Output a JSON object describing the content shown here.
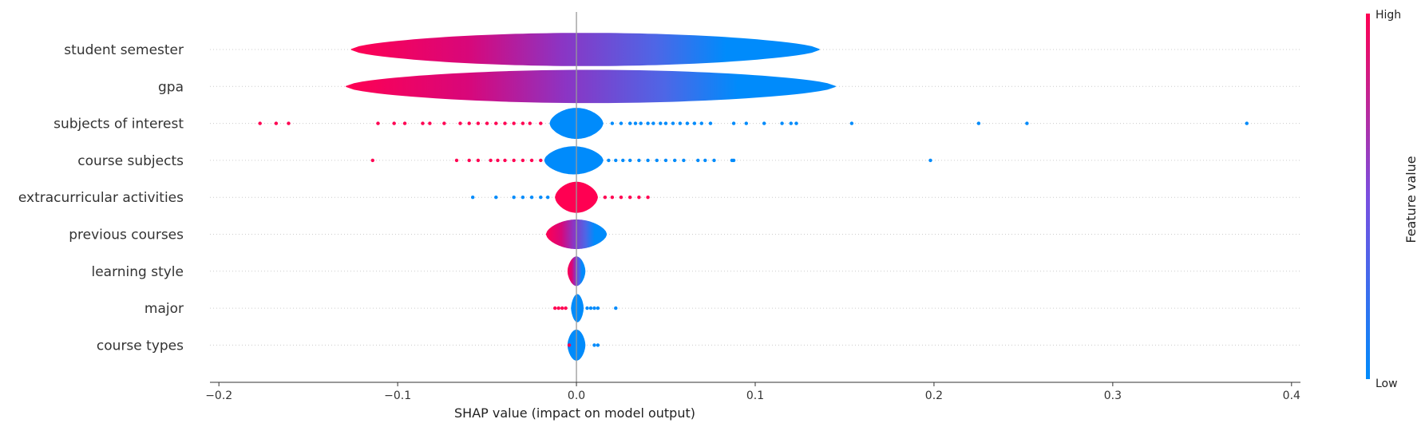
{
  "chart_data": {
    "type": "scatter",
    "subtype": "shap-violin-summary",
    "title": "",
    "xlabel": "SHAP value (impact on model output)",
    "xlim": [
      -0.205,
      0.405
    ],
    "xticks": [
      -0.2,
      -0.1,
      0.0,
      0.1,
      0.2,
      0.3,
      0.4
    ],
    "xtick_labels": [
      "−0.2",
      "−0.1",
      "0.0",
      "0.1",
      "0.2",
      "0.3",
      "0.4"
    ],
    "grid": "dotted horizontal guides per feature",
    "features": [
      {
        "name": "student semester",
        "violin": {
          "min": -0.126,
          "max": 0.136,
          "max_halfwidth": 0.45
        },
        "color_low_to_high_x": "high-left-low-right",
        "points_low": [],
        "points_high": []
      },
      {
        "name": "gpa",
        "violin": {
          "min": -0.129,
          "max": 0.145,
          "max_halfwidth": 0.45
        },
        "color_low_to_high_x": "high-left-low-right",
        "points_low": [],
        "points_high": []
      },
      {
        "name": "subjects of interest",
        "violin": {
          "min": -0.015,
          "max": 0.015,
          "max_halfwidth": 0.42
        },
        "points_low": [
          0.02,
          0.025,
          0.03,
          0.033,
          0.036,
          0.04,
          0.043,
          0.047,
          0.05,
          0.054,
          0.058,
          0.062,
          0.066,
          0.07,
          0.075,
          0.088,
          0.095,
          0.105,
          0.115,
          0.12,
          0.123,
          0.154,
          0.225,
          0.252,
          0.375
        ],
        "points_high": [
          -0.177,
          -0.168,
          -0.161,
          -0.111,
          -0.102,
          -0.096,
          -0.086,
          -0.082,
          -0.074,
          -0.065,
          -0.06,
          -0.055,
          -0.05,
          -0.045,
          -0.04,
          -0.035,
          -0.03,
          -0.026,
          -0.02
        ]
      },
      {
        "name": "course subjects",
        "violin": {
          "min": -0.018,
          "max": 0.015,
          "max_halfwidth": 0.38
        },
        "points_low": [
          0.018,
          0.022,
          0.026,
          0.03,
          0.035,
          0.04,
          0.045,
          0.05,
          0.055,
          0.06,
          0.068,
          0.072,
          0.077,
          0.087,
          0.088,
          0.198
        ],
        "points_high": [
          -0.114,
          -0.067,
          -0.06,
          -0.055,
          -0.048,
          -0.044,
          -0.04,
          -0.035,
          -0.03,
          -0.025,
          -0.02
        ]
      },
      {
        "name": "extracurricular activities",
        "violin": {
          "min": -0.012,
          "max": 0.012,
          "max_halfwidth": 0.42
        },
        "color_main": "high",
        "points_low": [
          -0.058,
          -0.045,
          -0.035,
          -0.03,
          -0.025,
          -0.02,
          -0.016
        ],
        "points_high": [
          0.016,
          0.02,
          0.025,
          0.03,
          0.035,
          0.04
        ]
      },
      {
        "name": "previous courses",
        "violin": {
          "min": -0.017,
          "max": 0.017,
          "max_halfwidth": 0.4
        },
        "color_low_to_high_x": "high-left-low-right",
        "points_low": [],
        "points_high": []
      },
      {
        "name": "learning style",
        "violin": {
          "min": -0.005,
          "max": 0.005,
          "max_halfwidth": 0.4
        },
        "color_low_to_high_x": "high-left-low-right",
        "points_low": [],
        "points_high": []
      },
      {
        "name": "major",
        "violin": {
          "min": -0.003,
          "max": 0.004,
          "max_halfwidth": 0.38
        },
        "points_low": [
          0.006,
          0.008,
          0.01,
          0.012,
          0.022
        ],
        "points_high": [
          -0.012,
          -0.01,
          -0.008,
          -0.006
        ]
      },
      {
        "name": "course types",
        "violin": {
          "min": -0.005,
          "max": 0.005,
          "max_halfwidth": 0.42
        },
        "points_low": [
          0.01,
          0.012
        ],
        "points_high": [
          -0.004
        ]
      }
    ],
    "colorbar": {
      "label": "Feature value",
      "high_label": "High",
      "low_label": "Low",
      "high_color": "#ff0052",
      "low_color": "#008bfb"
    }
  }
}
